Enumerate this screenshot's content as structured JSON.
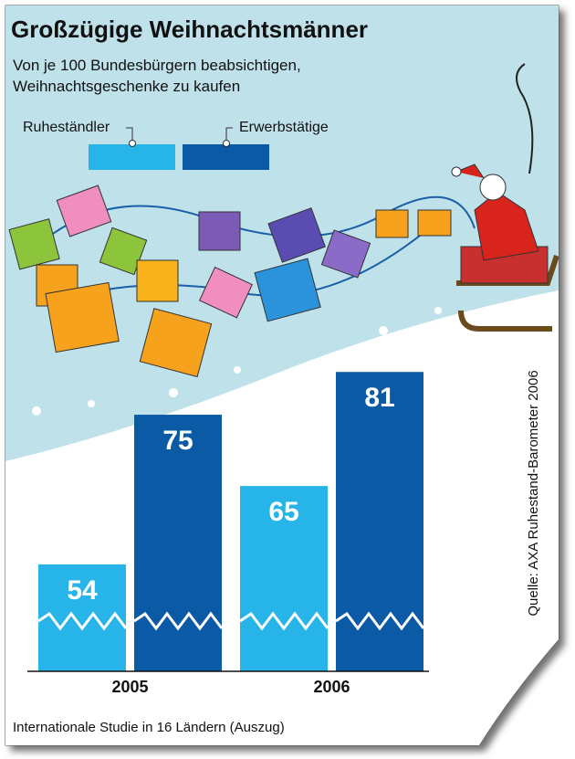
{
  "chart_data": {
    "type": "bar",
    "title": "Großzügige Weihnachtsmänner",
    "subtitle": "Von je 100 Bundesbürgern beabsichtigen, Weihnachtsgeschenke zu kaufen",
    "categories": [
      "2005",
      "2006"
    ],
    "series": [
      {
        "name": "Ruheständler",
        "color": "#27b4e8",
        "values": [
          54,
          65
        ]
      },
      {
        "name": "Erwerbstätige",
        "color": "#0b5aa6",
        "values": [
          75,
          81
        ]
      }
    ],
    "ylim": [
      39,
      90
    ],
    "source": "Quelle: AXA Ruhestand-Barometer 2006",
    "footnote": "Internationale Studie in 16 Ländern (Auszug)"
  }
}
